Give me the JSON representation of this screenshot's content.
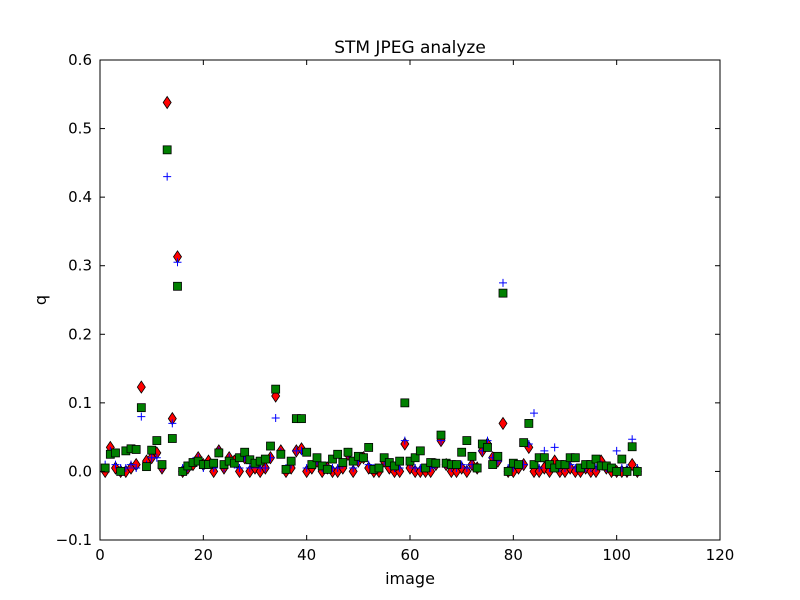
{
  "chart_data": {
    "type": "scatter",
    "title": "STM JPEG analyze",
    "xlabel": "image",
    "ylabel": "q",
    "xlim": [
      0,
      120
    ],
    "ylim": [
      -0.1,
      0.6
    ],
    "xticks": [
      0,
      20,
      40,
      60,
      80,
      100,
      120
    ],
    "yticks": [
      -0.1,
      0.0,
      0.1,
      0.2,
      0.3,
      0.4,
      0.5,
      0.6
    ],
    "ytick_labels": [
      "−0.1",
      "0.0",
      "0.1",
      "0.2",
      "0.3",
      "0.4",
      "0.5",
      "0.6"
    ],
    "grid": false,
    "legend": "none",
    "x": [
      1,
      2,
      3,
      4,
      5,
      6,
      7,
      8,
      9,
      10,
      11,
      12,
      13,
      14,
      15,
      16,
      17,
      18,
      19,
      20,
      21,
      22,
      23,
      24,
      25,
      26,
      27,
      28,
      29,
      30,
      31,
      32,
      33,
      34,
      35,
      36,
      37,
      38,
      39,
      40,
      41,
      42,
      43,
      44,
      45,
      46,
      47,
      48,
      49,
      50,
      51,
      52,
      53,
      54,
      55,
      56,
      57,
      58,
      59,
      60,
      61,
      62,
      63,
      64,
      65,
      66,
      67,
      68,
      69,
      70,
      71,
      72,
      73,
      74,
      75,
      76,
      77,
      78,
      79,
      80,
      81,
      82,
      83,
      84,
      85,
      86,
      87,
      88,
      89,
      90,
      91,
      92,
      93,
      94,
      95,
      96,
      97,
      98,
      99,
      100,
      101,
      102,
      103,
      104
    ],
    "series": [
      {
        "marker": "diamond",
        "color": "#ff0000",
        "values": [
          0.0,
          0.035,
          0.005,
          0.0,
          0.0,
          0.005,
          0.01,
          0.123,
          0.015,
          0.02,
          0.027,
          0.005,
          0.538,
          0.077,
          0.313,
          0.0,
          0.005,
          0.01,
          0.02,
          0.01,
          0.015,
          0.0,
          0.03,
          0.005,
          0.02,
          0.015,
          0.0,
          0.02,
          0.0,
          0.005,
          0.0,
          0.005,
          0.02,
          0.11,
          0.03,
          0.0,
          0.005,
          0.03,
          0.033,
          0.0,
          0.005,
          0.015,
          0.0,
          0.005,
          0.0,
          0.0,
          0.005,
          0.025,
          0.0,
          0.015,
          0.02,
          0.005,
          0.0,
          0.0,
          0.015,
          0.005,
          0.0,
          0.0,
          0.04,
          0.005,
          0.0,
          0.0,
          0.0,
          0.0,
          0.01,
          0.045,
          0.01,
          0.0,
          0.0,
          0.005,
          0.0,
          0.01,
          0.005,
          0.03,
          0.04,
          0.02,
          0.015,
          0.07,
          0.0,
          0.0,
          0.005,
          0.01,
          0.035,
          0.0,
          0.0,
          0.005,
          0.0,
          0.015,
          0.0,
          0.0,
          0.005,
          0.0,
          0.0,
          0.005,
          0.0,
          0.0,
          0.015,
          0.005,
          0.0,
          0.0,
          0.0,
          0.0,
          0.01,
          0.0
        ]
      },
      {
        "marker": "plus",
        "color": "#0000ff",
        "values": [
          0.01,
          0.03,
          0.01,
          0.005,
          0.005,
          0.01,
          0.005,
          0.08,
          0.01,
          0.02,
          0.02,
          0.005,
          0.43,
          0.07,
          0.305,
          0.005,
          0.005,
          0.015,
          0.02,
          0.005,
          0.01,
          0.005,
          0.03,
          0.005,
          0.02,
          0.01,
          0.005,
          0.02,
          0.005,
          0.01,
          0.005,
          0.005,
          0.02,
          0.078,
          0.028,
          0.005,
          0.01,
          0.03,
          0.03,
          0.005,
          0.01,
          0.015,
          0.005,
          0.005,
          0.005,
          0.005,
          0.01,
          0.025,
          0.005,
          0.015,
          0.02,
          0.01,
          0.005,
          0.005,
          0.015,
          0.01,
          0.005,
          0.005,
          0.045,
          0.01,
          0.005,
          0.005,
          0.005,
          0.005,
          0.01,
          0.045,
          0.01,
          0.005,
          0.005,
          0.01,
          0.005,
          0.01,
          0.005,
          0.03,
          0.045,
          0.02,
          0.015,
          0.275,
          0.005,
          0.005,
          0.01,
          0.01,
          0.04,
          0.085,
          0.005,
          0.03,
          0.005,
          0.035,
          0.005,
          0.005,
          0.01,
          0.005,
          0.005,
          0.005,
          0.005,
          0.005,
          0.01,
          0.005,
          0.005,
          0.03,
          0.005,
          0.005,
          0.047,
          0.005
        ]
      },
      {
        "marker": "square",
        "color": "#008000",
        "values": [
          0.005,
          0.025,
          0.027,
          0.0,
          0.03,
          0.033,
          0.032,
          0.093,
          0.007,
          0.031,
          0.045,
          0.01,
          0.469,
          0.048,
          0.27,
          0.0,
          0.008,
          0.013,
          0.015,
          0.01,
          0.01,
          0.012,
          0.027,
          0.01,
          0.015,
          0.012,
          0.02,
          0.028,
          0.017,
          0.012,
          0.015,
          0.018,
          0.037,
          0.12,
          0.025,
          0.003,
          0.015,
          0.077,
          0.077,
          0.028,
          0.01,
          0.02,
          0.008,
          0.003,
          0.018,
          0.025,
          0.013,
          0.028,
          0.015,
          0.022,
          0.02,
          0.035,
          0.003,
          0.005,
          0.02,
          0.013,
          0.008,
          0.015,
          0.1,
          0.015,
          0.02,
          0.03,
          0.005,
          0.013,
          0.012,
          0.053,
          0.012,
          0.01,
          0.01,
          0.028,
          0.045,
          0.022,
          0.005,
          0.04,
          0.035,
          0.01,
          0.022,
          0.26,
          0.0,
          0.012,
          0.01,
          0.042,
          0.07,
          0.01,
          0.02,
          0.02,
          0.01,
          0.005,
          0.01,
          0.01,
          0.02,
          0.02,
          0.005,
          0.01,
          0.01,
          0.018,
          0.008,
          0.008,
          0.005,
          0.0,
          0.018,
          0.0,
          0.036,
          0.0
        ]
      }
    ]
  }
}
